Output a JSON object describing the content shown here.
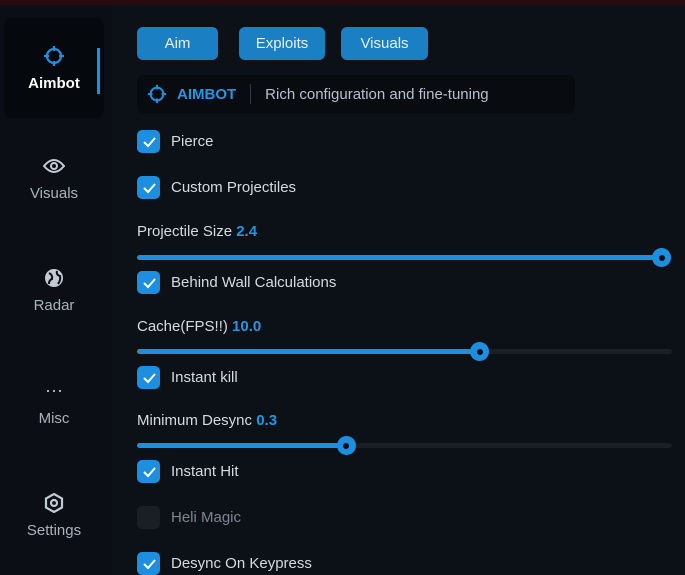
{
  "sidebar": {
    "items": [
      {
        "label": "Aimbot",
        "icon": "crosshair-icon",
        "active": true
      },
      {
        "label": "Visuals",
        "icon": "eye-icon"
      },
      {
        "label": "Radar",
        "icon": "globe-icon"
      },
      {
        "label": "Misc",
        "icon": "ellipsis-icon"
      },
      {
        "label": "Settings",
        "icon": "gear-icon"
      }
    ]
  },
  "tabs": [
    "Aim",
    "Exploits",
    "Visuals"
  ],
  "header": {
    "title": "AIMBOT",
    "description": "Rich configuration and fine-tuning"
  },
  "options": {
    "pierce": {
      "label": "Pierce",
      "checked": true
    },
    "custom_projectiles": {
      "label": "Custom Projectiles",
      "checked": true
    },
    "projectile_size": {
      "label": "Projectile Size",
      "value": "2.4",
      "fraction": 0.98
    },
    "behind_wall": {
      "label": "Behind Wall Calculations",
      "checked": true
    },
    "cache": {
      "label": "Cache(FPS!!)",
      "value": "10.0",
      "fraction": 0.64
    },
    "instant_kill": {
      "label": "Instant kill",
      "checked": true
    },
    "min_desync": {
      "label": "Minimum Desync",
      "value": "0.3",
      "fraction": 0.39
    },
    "instant_hit": {
      "label": "Instant Hit",
      "checked": true
    },
    "heli_magic": {
      "label": "Heli Magic",
      "checked": false
    },
    "desync_keypress": {
      "label": "Desync On Keypress",
      "checked": true
    }
  },
  "colors": {
    "accent": "#1c8fe0",
    "background": "#0c1118"
  }
}
